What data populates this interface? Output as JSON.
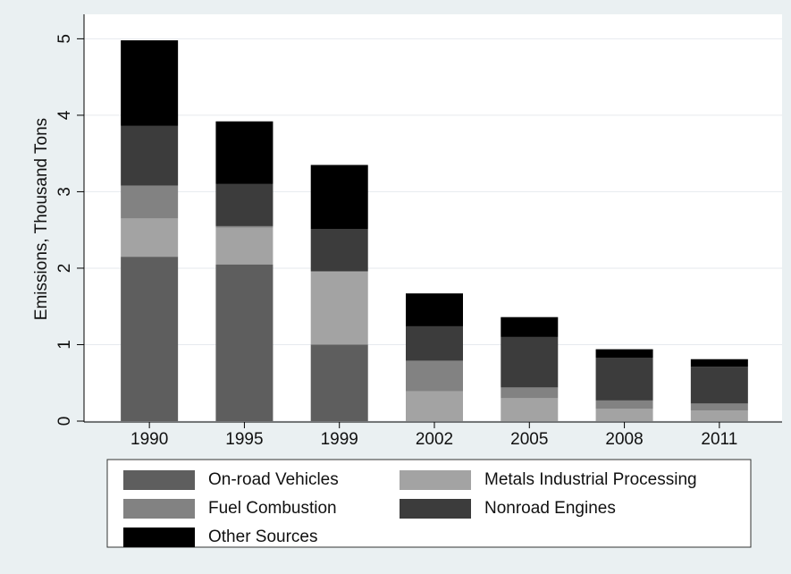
{
  "chart_data": {
    "type": "stacked_bar",
    "y_label": "Emissions, Thousand Tons",
    "categories": [
      "1990",
      "1995",
      "1999",
      "2002",
      "2005",
      "2008",
      "2011"
    ],
    "series": [
      {
        "name": "On-road Vehicles",
        "color": "#5e5e5e",
        "values": [
          2.15,
          2.05,
          1.0,
          0,
          0,
          0,
          0
        ]
      },
      {
        "name": "Metals Industrial Processing",
        "color": "#a3a3a3",
        "values": [
          0.5,
          0.48,
          0.95,
          0.39,
          0.3,
          0.16,
          0.14
        ]
      },
      {
        "name": "Fuel Combustion",
        "color": "#828282",
        "values": [
          0.43,
          0.02,
          0.01,
          0.4,
          0.14,
          0.11,
          0.09
        ]
      },
      {
        "name": "Nonroad Engines",
        "color": "#3c3c3c",
        "values": [
          0.78,
          0.55,
          0.55,
          0.45,
          0.66,
          0.56,
          0.48
        ]
      },
      {
        "name": "Other Sources",
        "color": "#000000",
        "values": [
          1.12,
          0.82,
          0.84,
          0.43,
          0.26,
          0.11,
          0.1
        ]
      }
    ],
    "ylim": [
      0,
      5.25
    ],
    "yticks": [
      0,
      1,
      2,
      3,
      4,
      5
    ],
    "grid": true
  }
}
